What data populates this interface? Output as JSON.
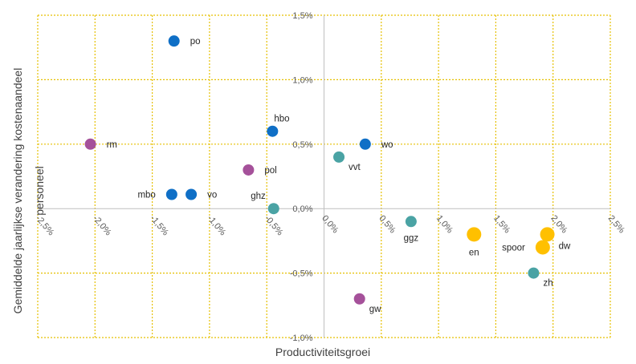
{
  "chart_data": {
    "type": "scatter",
    "xlabel": "Productiviteitsgroei",
    "ylabel_lines": [
      "Gemiddelde jaarlijkse verandering kostenaandeel",
      "personeel"
    ],
    "xlim": [
      -2.5,
      2.5
    ],
    "ylim": [
      -1.0,
      1.5
    ],
    "xticks": [
      -2.5,
      -2.0,
      -1.5,
      -1.0,
      -0.5,
      0.0,
      0.5,
      1.0,
      1.5,
      2.0,
      2.5
    ],
    "yticks": [
      -1.0,
      -0.5,
      0.0,
      0.5,
      1.0,
      1.5
    ],
    "xtick_labels": [
      "-2,5%",
      "-2,0%",
      "-1,5%",
      "-1,0%",
      "-0,5%",
      "0,0%",
      "0,5%",
      "1,0%",
      "1,5%",
      "2,0%",
      "2,5%"
    ],
    "ytick_labels": [
      "-1,0%",
      "-0,5%",
      "0,0%",
      "0,5%",
      "1,0%",
      "1,5%"
    ],
    "grid": true,
    "grid_color": "#e6c000",
    "points": [
      {
        "label": "po",
        "x": -1.31,
        "y": 1.3,
        "color": "#0f6fc6",
        "r": 7,
        "label_side": "right"
      },
      {
        "label": "hbo",
        "x": -0.45,
        "y": 0.6,
        "color": "#0f6fc6",
        "r": 7,
        "label_side": "above-right"
      },
      {
        "label": "wo",
        "x": 0.36,
        "y": 0.5,
        "color": "#0f6fc6",
        "r": 7,
        "label_side": "right"
      },
      {
        "label": "mbo",
        "x": -1.33,
        "y": 0.11,
        "color": "#0f6fc6",
        "r": 7,
        "label_side": "left"
      },
      {
        "label": "vo",
        "x": -1.16,
        "y": 0.11,
        "color": "#0f6fc6",
        "r": 7,
        "label_side": "right"
      },
      {
        "label": "rm",
        "x": -2.04,
        "y": 0.5,
        "color": "#a5519a",
        "r": 7,
        "label_side": "right"
      },
      {
        "label": "pol",
        "x": -0.66,
        "y": 0.3,
        "color": "#a5519a",
        "r": 7,
        "label_side": "right"
      },
      {
        "label": "gw",
        "x": 0.31,
        "y": -0.7,
        "color": "#a5519a",
        "r": 7,
        "label_side": "below-right"
      },
      {
        "label": "vvt",
        "x": 0.13,
        "y": 0.4,
        "color": "#4aa3a4",
        "r": 7,
        "label_side": "below-right"
      },
      {
        "label": "ghz",
        "x": -0.44,
        "y": 0.0,
        "color": "#4aa3a4",
        "r": 7,
        "label_side": "above-left"
      },
      {
        "label": "ggz",
        "x": 0.76,
        "y": -0.1,
        "color": "#4aa3a4",
        "r": 7,
        "label_side": "below"
      },
      {
        "label": "zh",
        "x": 1.83,
        "y": -0.5,
        "color": "#4aa3a4",
        "r": 7,
        "label_side": "below-right"
      },
      {
        "label": "en",
        "x": 1.31,
        "y": -0.2,
        "color": "#ffc000",
        "r": 9,
        "label_side": "below"
      },
      {
        "label": "dw",
        "x": 1.95,
        "y": -0.2,
        "color": "#ffc000",
        "r": 9,
        "label_side": "below-right"
      },
      {
        "label": "spoor",
        "x": 1.91,
        "y": -0.3,
        "color": "#ffc000",
        "r": 9,
        "label_side": "left"
      }
    ]
  }
}
